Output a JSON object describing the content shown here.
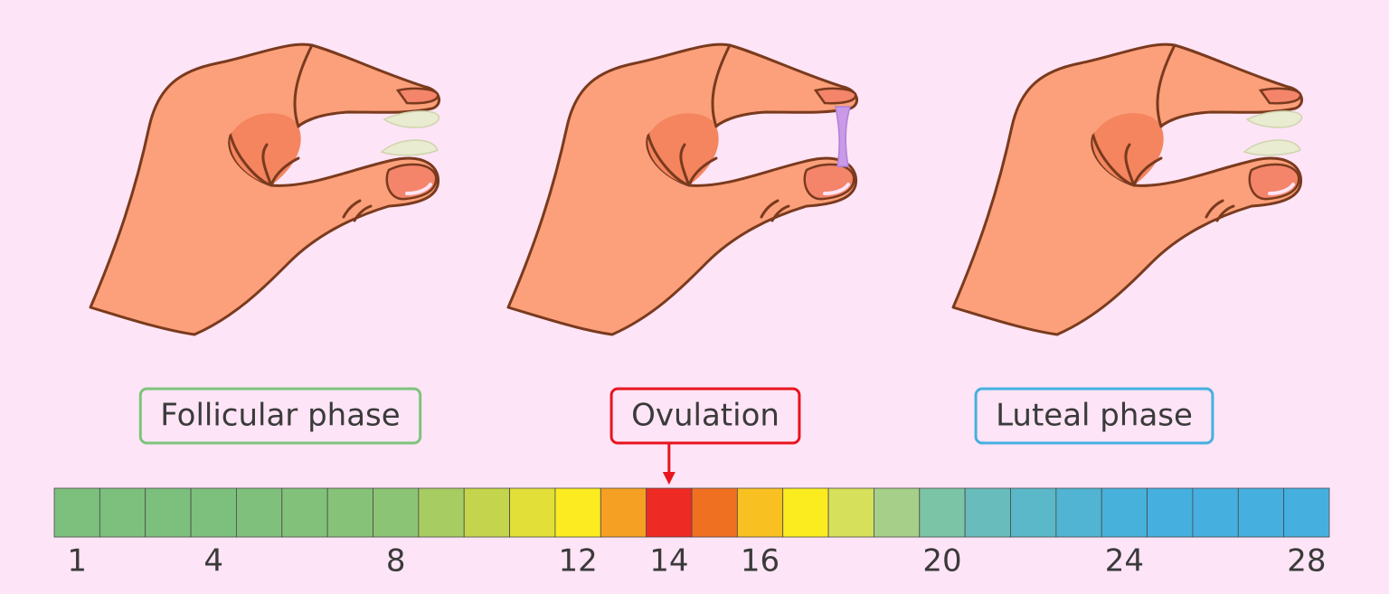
{
  "phases": [
    {
      "label": "Follicular phase",
      "color": "#7cc47c"
    },
    {
      "label": "Ovulation",
      "color": "#e8141e"
    },
    {
      "label": "Luteal phase",
      "color": "#45b0e0"
    }
  ],
  "timeline": {
    "cells": [
      "#7dbf7d",
      "#7dbf7d",
      "#7dbf7d",
      "#7dbf7d",
      "#7fc07c",
      "#82c17a",
      "#86c278",
      "#8cc475",
      "#a6cc62",
      "#c4d44c",
      "#e1df38",
      "#fbeb20",
      "#f5a023",
      "#ee2a24",
      "#f07022",
      "#f9c021",
      "#fbec20",
      "#d6e05a",
      "#a6d08a",
      "#7cc4a6",
      "#68bcbc",
      "#5bb8c8",
      "#50b4d2",
      "#47b1dc",
      "#45b0e0",
      "#45b0e0",
      "#45b0e0",
      "#45b0e0"
    ],
    "days": [
      1,
      4,
      8,
      12,
      14,
      16,
      20,
      24,
      28
    ],
    "ovulation_day": 14
  }
}
